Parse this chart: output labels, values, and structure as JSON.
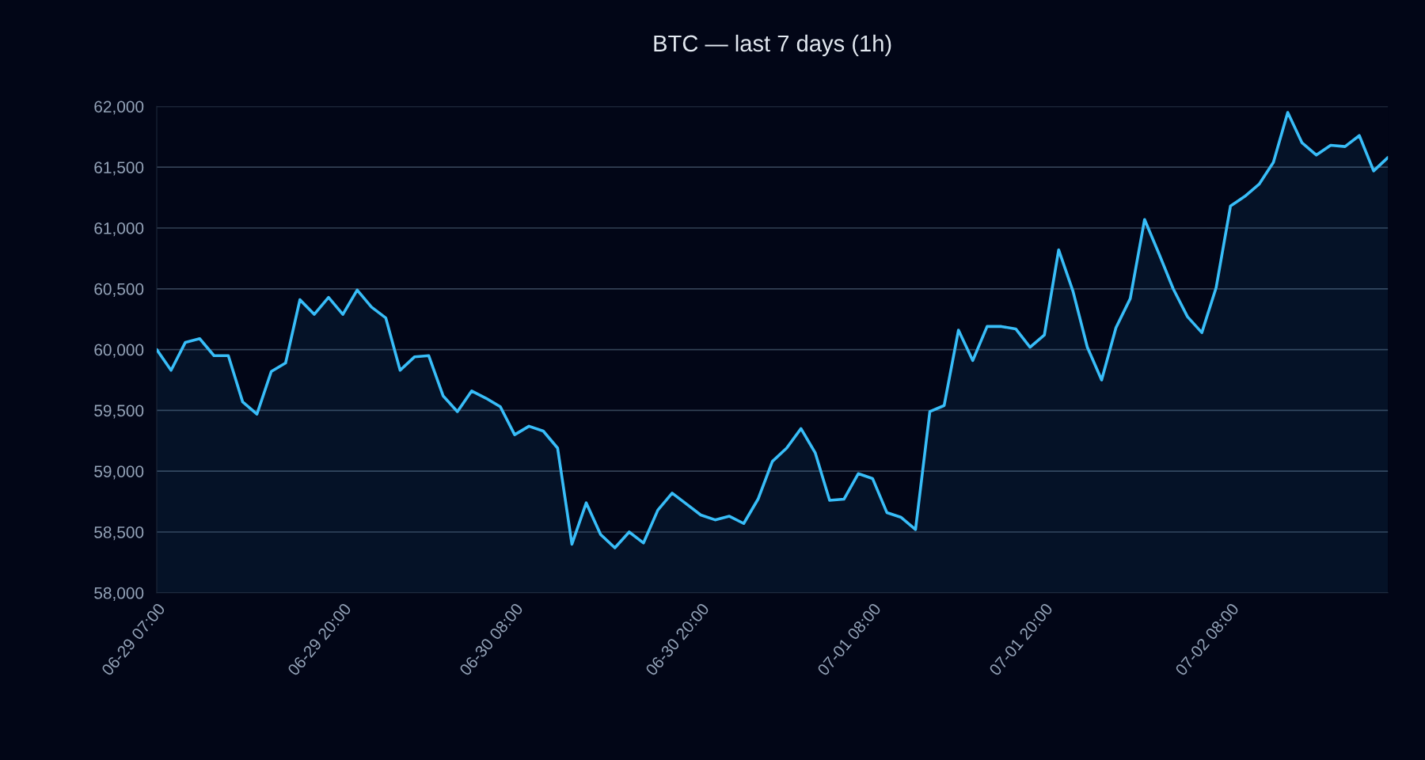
{
  "chart_data": {
    "type": "area",
    "title": "BTC — last 7 days (1h)",
    "categories": [
      "06-29 07:00",
      null,
      null,
      null,
      null,
      null,
      null,
      null,
      null,
      null,
      null,
      null,
      null,
      "06-29 20:00",
      null,
      null,
      null,
      null,
      null,
      null,
      null,
      null,
      null,
      null,
      null,
      "06-30 08:00",
      null,
      null,
      null,
      null,
      null,
      null,
      null,
      null,
      null,
      null,
      null,
      null,
      "06-30 20:00",
      null,
      null,
      null,
      null,
      null,
      null,
      null,
      null,
      null,
      null,
      null,
      "07-01 08:00",
      null,
      null,
      null,
      null,
      null,
      null,
      null,
      null,
      null,
      null,
      null,
      "07-01 20:00",
      null,
      null,
      null,
      null,
      null,
      null,
      null,
      null,
      null,
      null,
      null,
      null,
      "07-02 08:00",
      null,
      null,
      null,
      null,
      null,
      null,
      null,
      null,
      null,
      null,
      null
    ],
    "series": [
      {
        "color": "#38bdf8",
        "values": [
          60000,
          59830,
          60060,
          60090,
          59950,
          59950,
          59570,
          59470,
          59820,
          59890,
          60410,
          60290,
          60430,
          60290,
          60490,
          60350,
          60260,
          59830,
          59940,
          59950,
          59620,
          59490,
          59660,
          59600,
          59530,
          59300,
          59370,
          59330,
          59190,
          58400,
          58740,
          58480,
          58370,
          58500,
          58410,
          58680,
          58820,
          58730,
          58640,
          58600,
          58630,
          58570,
          58770,
          59080,
          59190,
          59350,
          59150,
          58760,
          58770,
          58980,
          58940,
          58660,
          58620,
          58520,
          59490,
          59540,
          60160,
          59910,
          60190,
          60190,
          60170,
          60020,
          60120,
          60820,
          60480,
          60020,
          59750,
          60180,
          60420,
          61070,
          60790,
          60500,
          60270,
          60140,
          60510,
          61180,
          61260,
          61360,
          61540,
          61950,
          61700,
          61600,
          61680,
          61670,
          61760,
          61470,
          61580
        ]
      }
    ],
    "ylim": [
      58000,
      62000
    ],
    "yticks": [
      {
        "value": 58000,
        "label": "58,000"
      },
      {
        "value": 58500,
        "label": "58,500"
      },
      {
        "value": 59000,
        "label": "59,000"
      },
      {
        "value": 59500,
        "label": "59,500"
      },
      {
        "value": 60000,
        "label": "60,000"
      },
      {
        "value": 60500,
        "label": "60,500"
      },
      {
        "value": 61000,
        "label": "61,000"
      },
      {
        "value": 61500,
        "label": "61,500"
      },
      {
        "value": 62000,
        "label": "62,000"
      }
    ],
    "grid": "y",
    "legend": false,
    "marker": "none",
    "line_style": "solid"
  }
}
